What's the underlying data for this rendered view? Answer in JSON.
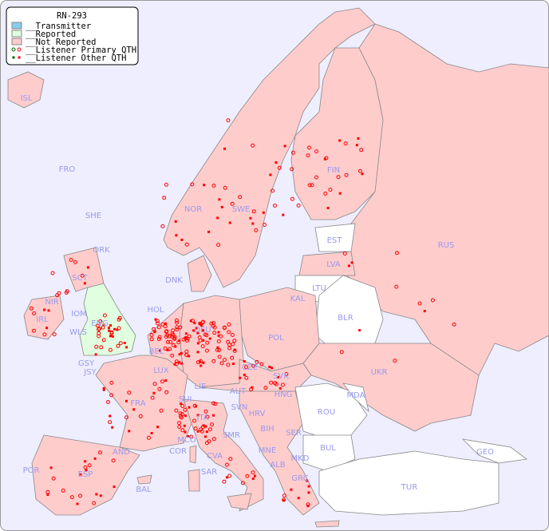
{
  "legend": {
    "title": "RN-293",
    "items": [
      {
        "label": "__Transmitter",
        "color": "#88ccee"
      },
      {
        "label": "__Reported",
        "color": "#e0ffe0"
      },
      {
        "label": "__Not Reported",
        "color": "#ffcccc"
      },
      {
        "label": "__Listener Primary QTH",
        "color": "#ff0000"
      },
      {
        "label": "__Listener Other QTH",
        "color": "#ff0000"
      }
    ]
  },
  "colors": {
    "sea": "#eeeeff",
    "not_reported": "#ffcccc",
    "reported": "#e0ffe0",
    "no_data": "#ffffff",
    "listener": "#ff0000"
  },
  "countries": [
    "ISL",
    "FRO",
    "SHE",
    "ORK",
    "NOR",
    "SWE",
    "FIN",
    "EST",
    "RUS",
    "LVA",
    "LTU",
    "DNK",
    "KAL",
    "BLR",
    "HOL",
    "IRL",
    "NIR",
    "SCT",
    "IOM",
    "WLS",
    "ENG",
    "GSY",
    "JSY",
    "BEL",
    "DEU",
    "POL",
    "LUX",
    "CZE",
    "SVK",
    "UKR",
    "FRA",
    "SUI",
    "LIE",
    "AUT",
    "HNG",
    "MDA",
    "SVN",
    "HRV",
    "ROU",
    "ITA",
    "BIH",
    "SER",
    "MCO",
    "SMR",
    "BUL",
    "COR",
    "CVA",
    "MNE",
    "AND",
    "MKD",
    "ALB",
    "GEO",
    "POR",
    "ESP",
    "SAR",
    "GRC",
    "BAL",
    "TUR"
  ]
}
